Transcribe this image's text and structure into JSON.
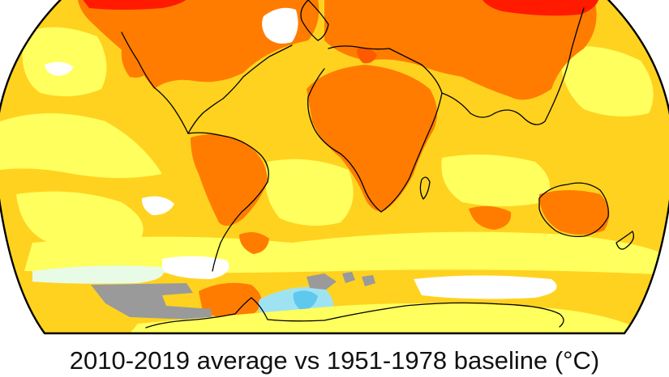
{
  "caption": "2010-2019 average vs 1951-1978 baseline (°C)",
  "map": {
    "projection": "Robinson",
    "subject": "surface temperature anomaly",
    "colors": {
      "ocean_base": "#ffd21f",
      "light_yellow": "#ffff5e",
      "orange": "#ff7c00",
      "deep_orange": "#ff5a00",
      "red": "#ff1a00",
      "white": "#ffffff",
      "pale_green": "#e8fbe6",
      "light_blue": "#9fe3f3",
      "blue": "#5fc8ef",
      "gray_no_data": "#9a9a9a",
      "coastline": "#000000",
      "frame": "#000000"
    }
  }
}
